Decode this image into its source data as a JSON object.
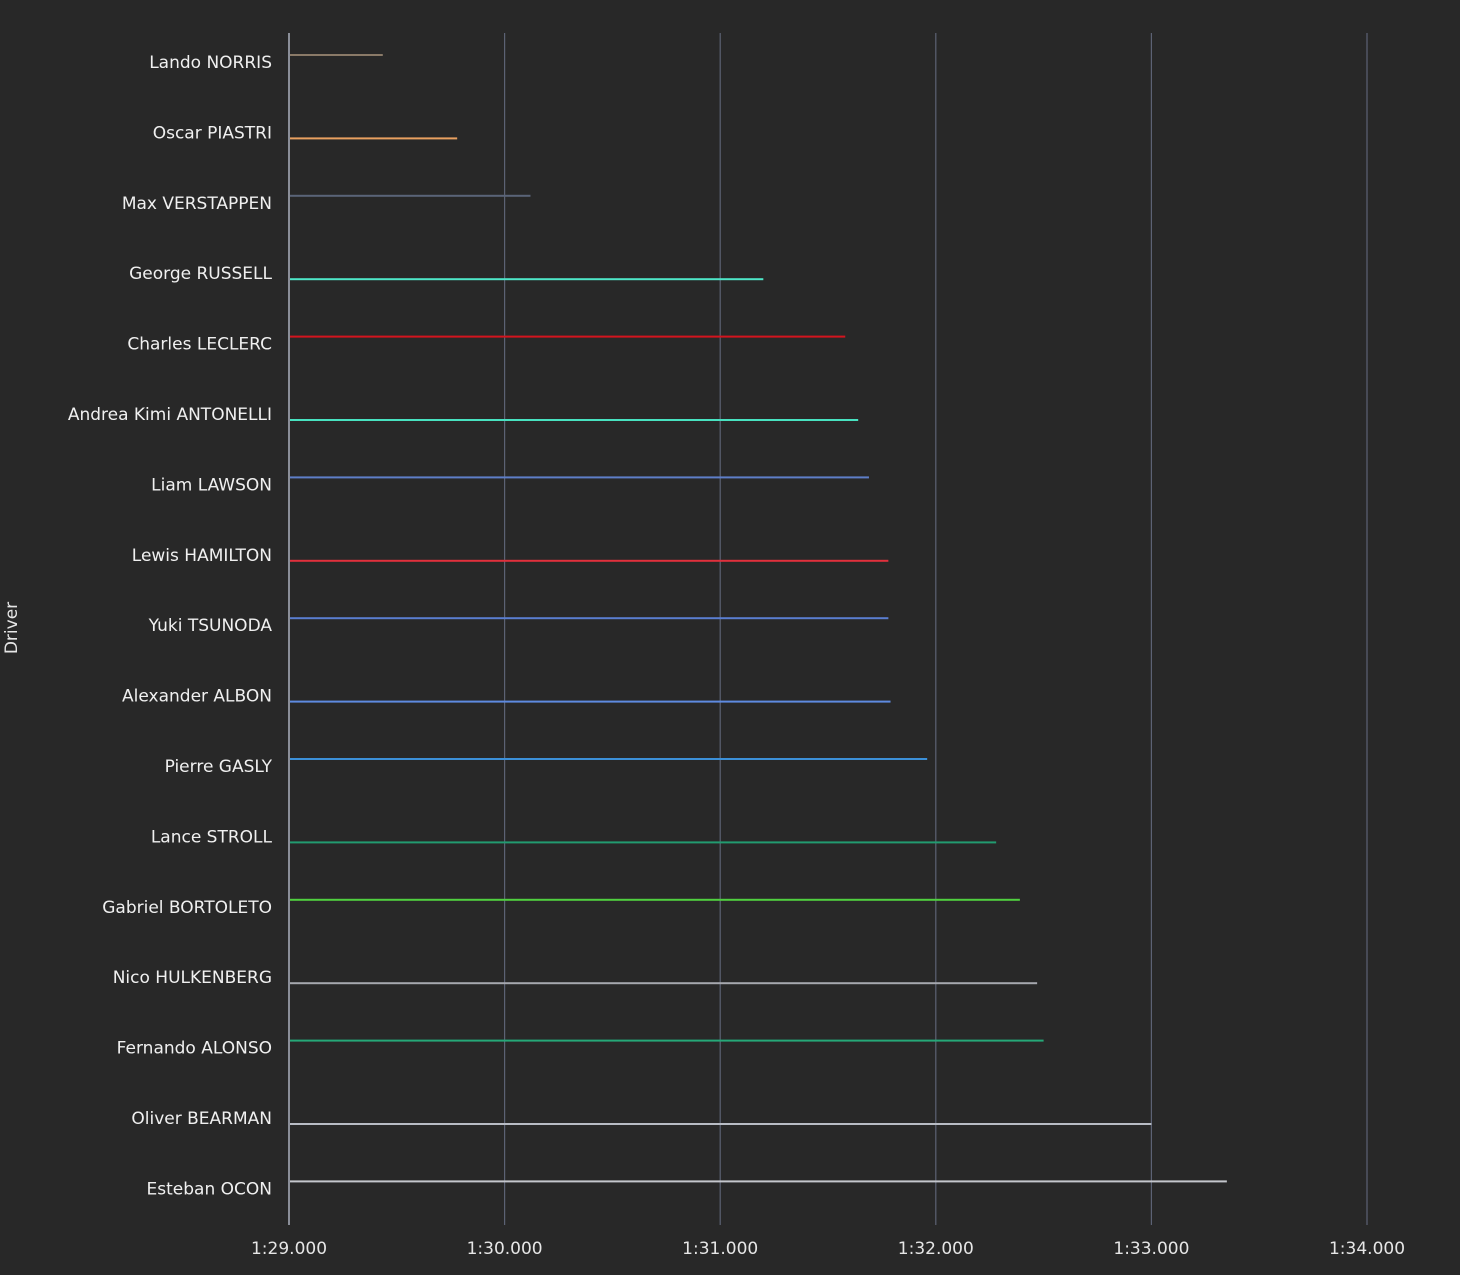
{
  "chart_data": {
    "type": "bar",
    "orientation": "horizontal",
    "ylabel": "Driver",
    "xlabel": "",
    "x_tick_labels": [
      "1:29.000",
      "1:30.000",
      "1:31.000",
      "1:32.000",
      "1:33.000",
      "1:34.000"
    ],
    "x_tick_values": [
      89,
      90,
      91,
      92,
      93,
      94
    ],
    "xlim": [
      89,
      94
    ],
    "grid": true,
    "categories": [
      "Lando NORRIS",
      "Oscar PIASTRI",
      "Max VERSTAPPEN",
      "George RUSSELL",
      "Charles LECLERC",
      "Andrea Kimi ANTONELLI",
      "Liam LAWSON",
      "Lewis HAMILTON",
      "Yuki TSUNODA",
      "Alexander ALBON",
      "Pierre GASLY",
      "Lance STROLL",
      "Gabriel BORTOLETO",
      "Nico HULKENBERG",
      "Fernando ALONSO",
      "Oliver BEARMAN",
      "Esteban OCON"
    ],
    "values": [
      89.435,
      89.78,
      90.12,
      91.2,
      91.58,
      91.64,
      91.69,
      91.78,
      91.78,
      91.79,
      91.96,
      92.28,
      92.39,
      92.47,
      92.5,
      93.0,
      93.35
    ],
    "colors": [
      "#8a7a68",
      "#e8a060",
      "#5a6478",
      "#4ee6c8",
      "#d4141e",
      "#48e2c0",
      "#5e7ec8",
      "#e0303c",
      "#5a7ed0",
      "#5e8ae0",
      "#3c90d8",
      "#229b70",
      "#50d040",
      "#a6a8ae",
      "#26a878",
      "#b8bcc4",
      "#c4c6cc"
    ]
  }
}
